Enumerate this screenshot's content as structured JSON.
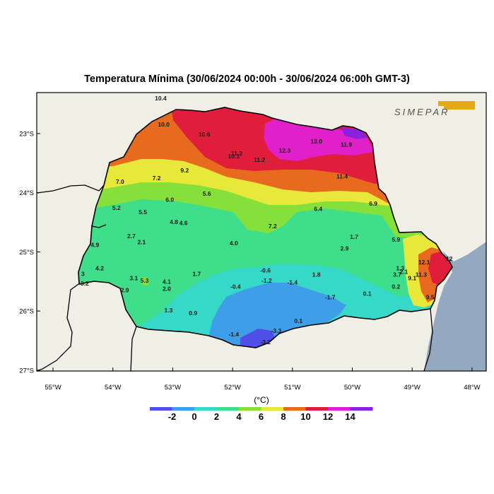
{
  "title": "Temperatura Mínima (30/06/2024 00:00h - 30/06/2024 06:00h GMT-3)",
  "logo_text": "SIMEPAR",
  "logo_color": "#e6a817",
  "colorbar": {
    "unit": "(°C)",
    "ticks": [
      "-2",
      "0",
      "2",
      "4",
      "6",
      "8",
      "10",
      "12",
      "14"
    ],
    "colors": [
      "#5050e8",
      "#3f9ee8",
      "#36d9c8",
      "#3ede8a",
      "#86e03a",
      "#e8e83a",
      "#e86a1e",
      "#e01e3c",
      "#e020c8",
      "#8a20e0"
    ]
  },
  "axes": {
    "lat_labels": [
      "23°S",
      "24°S",
      "25°S",
      "26°S",
      "27°S"
    ],
    "lon_labels": [
      "55°W",
      "54°W",
      "53°W",
      "52°W",
      "51°W",
      "50°W",
      "49°W",
      "48°W"
    ]
  },
  "stations": [
    {
      "v": "10.4",
      "lon": -53.2,
      "lat": -22.44
    },
    {
      "v": "10.0",
      "lon": -53.15,
      "lat": -22.88
    },
    {
      "v": "10.6",
      "lon": -52.47,
      "lat": -23.05
    },
    {
      "v": "10.1",
      "lon": -51.98,
      "lat": -23.42
    },
    {
      "v": "11.2",
      "lon": -51.93,
      "lat": -23.37
    },
    {
      "v": "11.2",
      "lon": -51.55,
      "lat": -23.48
    },
    {
      "v": "12.3",
      "lon": -51.13,
      "lat": -23.32
    },
    {
      "v": "13.0",
      "lon": -50.6,
      "lat": -23.17
    },
    {
      "v": "11.9",
      "lon": -50.1,
      "lat": -23.22
    },
    {
      "v": "9.2",
      "lon": -52.8,
      "lat": -23.66
    },
    {
      "v": "7.0",
      "lon": -53.88,
      "lat": -23.85
    },
    {
      "v": "7.2",
      "lon": -53.27,
      "lat": -23.79
    },
    {
      "v": "11.4",
      "lon": -50.17,
      "lat": -23.76
    },
    {
      "v": "6.0",
      "lon": -53.05,
      "lat": -24.15
    },
    {
      "v": "5.6",
      "lon": -52.43,
      "lat": -24.05
    },
    {
      "v": "6.9",
      "lon": -49.65,
      "lat": -24.22
    },
    {
      "v": "5.2",
      "lon": -53.94,
      "lat": -24.29
    },
    {
      "v": "5.5",
      "lon": -53.5,
      "lat": -24.36
    },
    {
      "v": "6.4",
      "lon": -50.57,
      "lat": -24.31
    },
    {
      "v": "4.8",
      "lon": -52.98,
      "lat": -24.53
    },
    {
      "v": "4.6",
      "lon": -52.82,
      "lat": -24.55
    },
    {
      "v": "7.2",
      "lon": -51.33,
      "lat": -24.6
    },
    {
      "v": "2.7",
      "lon": -53.69,
      "lat": -24.77
    },
    {
      "v": "2.1",
      "lon": -53.52,
      "lat": -24.87
    },
    {
      "v": "4.9",
      "lon": -54.3,
      "lat": -24.92
    },
    {
      "v": "4.0",
      "lon": -51.98,
      "lat": -24.89
    },
    {
      "v": "1.7",
      "lon": -49.97,
      "lat": -24.78
    },
    {
      "v": "5.9",
      "lon": -49.27,
      "lat": -24.83
    },
    {
      "v": "2.9",
      "lon": -50.13,
      "lat": -24.98
    },
    {
      "v": "12.1",
      "lon": -48.8,
      "lat": -25.21
    },
    {
      "v": "12",
      "lon": -48.38,
      "lat": -25.15
    },
    {
      "v": "4.2",
      "lon": -54.22,
      "lat": -25.31
    },
    {
      "v": "3",
      "lon": -54.5,
      "lat": -25.41
    },
    {
      "v": "-0.6",
      "lon": -51.45,
      "lat": -25.35
    },
    {
      "v": "1.3",
      "lon": -49.2,
      "lat": -25.31
    },
    {
      "v": "2.1",
      "lon": -49.14,
      "lat": -25.37
    },
    {
      "v": "3.7",
      "lon": -49.25,
      "lat": -25.42
    },
    {
      "v": "11.3",
      "lon": -48.85,
      "lat": -25.42
    },
    {
      "v": "9.1",
      "lon": -49.0,
      "lat": -25.48
    },
    {
      "v": "3.1",
      "lon": -53.65,
      "lat": -25.48
    },
    {
      "v": "5.3",
      "lon": -53.47,
      "lat": -25.52
    },
    {
      "v": "1.7",
      "lon": -52.6,
      "lat": -25.41
    },
    {
      "v": "1.8",
      "lon": -50.6,
      "lat": -25.42
    },
    {
      "v": "3.2",
      "lon": -54.47,
      "lat": -25.57
    },
    {
      "v": "4.1",
      "lon": -53.1,
      "lat": -25.54
    },
    {
      "v": "-1.2",
      "lon": -51.43,
      "lat": -25.52
    },
    {
      "v": "-1.4",
      "lon": -51.0,
      "lat": -25.55
    },
    {
      "v": "-0.4",
      "lon": -51.95,
      "lat": -25.62
    },
    {
      "v": "0.2",
      "lon": -49.27,
      "lat": -25.62
    },
    {
      "v": "2.9",
      "lon": -53.8,
      "lat": -25.68
    },
    {
      "v": "2.0",
      "lon": -53.1,
      "lat": -25.66
    },
    {
      "v": "0.1",
      "lon": -49.75,
      "lat": -25.74
    },
    {
      "v": "-1.7",
      "lon": -50.37,
      "lat": -25.8
    },
    {
      "v": "9.5",
      "lon": -48.7,
      "lat": -25.8
    },
    {
      "v": "1.3",
      "lon": -53.07,
      "lat": -26.02
    },
    {
      "v": "0.9",
      "lon": -52.66,
      "lat": -26.07
    },
    {
      "v": "0.1",
      "lon": -50.9,
      "lat": -26.2
    },
    {
      "v": "-3.3",
      "lon": -51.27,
      "lat": -26.37
    },
    {
      "v": "-1.4",
      "lon": -51.98,
      "lat": -26.43
    },
    {
      "v": "-3.2",
      "lon": -51.45,
      "lat": -26.56
    }
  ]
}
